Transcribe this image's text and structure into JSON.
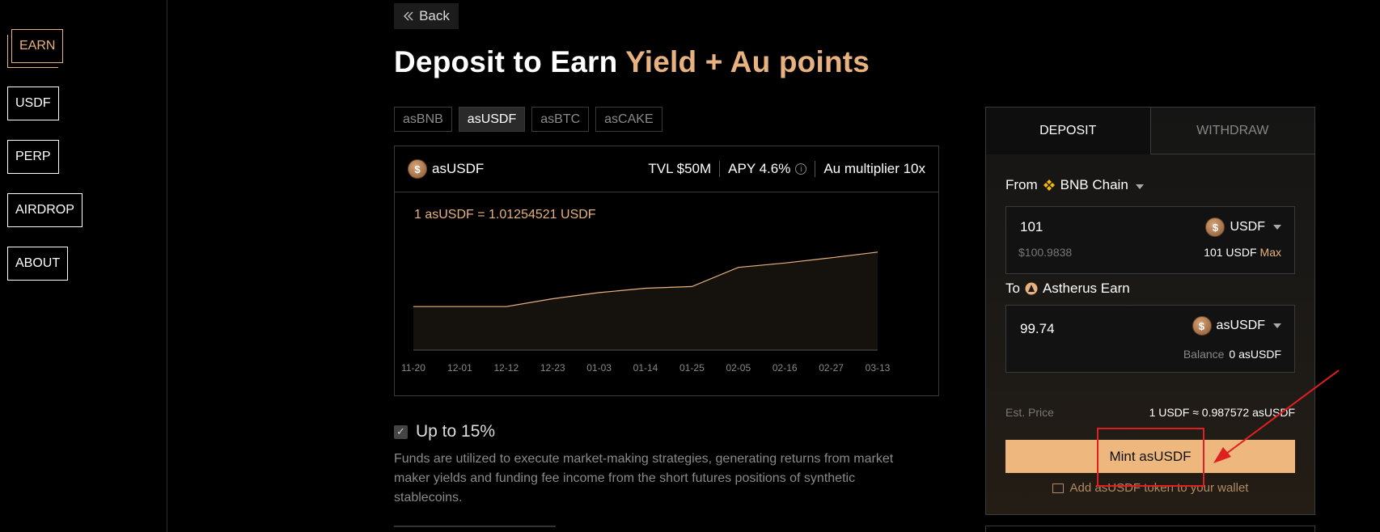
{
  "sidebar": {
    "items": [
      {
        "label": "EARN",
        "active": true
      },
      {
        "label": "USDF",
        "active": false
      },
      {
        "label": "PERP",
        "active": false
      },
      {
        "label": "AIRDROP",
        "active": false
      },
      {
        "label": "ABOUT",
        "active": false
      }
    ]
  },
  "main": {
    "back_label": "Back",
    "headline_prefix": "Deposit to Earn",
    "headline_accent": "Yield + Au points",
    "token_tabs": [
      {
        "label": "asBNB",
        "active": false
      },
      {
        "label": "asUSDF",
        "active": true
      },
      {
        "label": "asBTC",
        "active": false
      },
      {
        "label": "asCAKE",
        "active": false
      }
    ],
    "card": {
      "token_name": "asUSDF",
      "tvl": "TVL $50M",
      "apy": "APY 4.6%",
      "multiplier": "Au multiplier 10x",
      "rate_text": "1 asUSDF = 1.01254521 USDF"
    },
    "feature": {
      "title": "Up to 15%",
      "description": "Funds are utilized to execute market-making strategies, generating returns from market maker yields and funding fee income from the short futures positions of synthetic stablecoins."
    }
  },
  "panel": {
    "tabs": [
      {
        "label": "DEPOSIT",
        "active": true
      },
      {
        "label": "WITHDRAW",
        "active": false
      }
    ],
    "from_label": "From",
    "from_chain": "BNB Chain",
    "from_amount": "101",
    "from_usd": "$100.9838",
    "from_token": "USDF",
    "from_balance": "101 USDF",
    "max_label": "Max",
    "to_label": "To",
    "to_target": "Astherus Earn",
    "to_amount": "99.74",
    "to_token": "asUSDF",
    "balance_label": "Balance",
    "to_balance": "0 asUSDF",
    "est_label": "Est. Price",
    "est_value": "1 USDF ≈ 0.987572 asUSDF",
    "mint_label": "Mint asUSDF",
    "add_wallet_label": "Add asUSDF token to your wallet"
  },
  "colors": {
    "accent": "#e8b27f",
    "button": "#edb77e",
    "annotation": "#e02020"
  },
  "chart_data": {
    "type": "area",
    "title": "",
    "xlabel": "",
    "ylabel": "",
    "categories": [
      "11-20",
      "12-01",
      "12-12",
      "12-23",
      "01-03",
      "01-14",
      "01-25",
      "02-05",
      "02-16",
      "02-27",
      "03-13"
    ],
    "series": [
      {
        "values": [
          1.0,
          1.0,
          1.0,
          1.0018,
          1.0032,
          1.0042,
          1.0046,
          1.009,
          1.01,
          1.0112,
          1.0125
        ]
      }
    ],
    "ylim": [
      0.99,
      1.016
    ],
    "grid": false,
    "legend": "none"
  }
}
